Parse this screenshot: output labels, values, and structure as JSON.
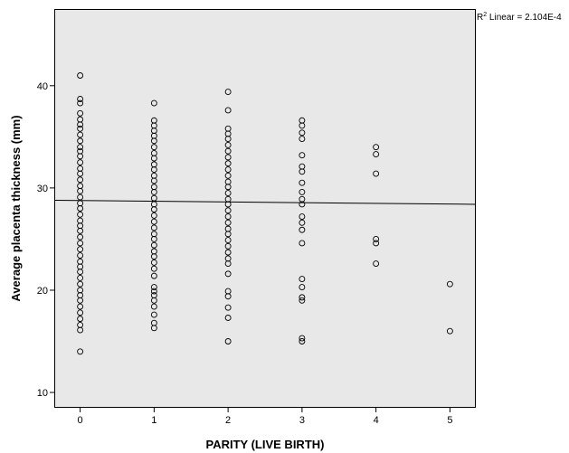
{
  "chart_data": {
    "type": "scatter",
    "xlabel": "PARITY (LIVE BIRTH)",
    "ylabel": "Average placenta thickness (mm)",
    "xlim": [
      -0.35,
      5.35
    ],
    "ylim": [
      8.5,
      47.5
    ],
    "x_ticks": [
      0,
      1,
      2,
      3,
      4,
      5
    ],
    "x_tick_labels": [
      "0",
      "1",
      "2",
      "3",
      "4",
      "5"
    ],
    "y_ticks": [
      10,
      20,
      30,
      40
    ],
    "y_tick_labels": [
      "10",
      "20",
      "30",
      "40"
    ],
    "grid": false,
    "background": "#e8e8e8",
    "marker": "open-circle",
    "fit_line": {
      "label_prefix": "R",
      "label_sup": "2",
      "label_rest": " Linear = 2.104E-4",
      "x": [
        -0.35,
        5.35
      ],
      "y": [
        28.8,
        28.4
      ]
    },
    "series": [
      {
        "points": [
          [
            0,
            41.0
          ],
          [
            0,
            38.7
          ],
          [
            0,
            38.3
          ],
          [
            0,
            37.3
          ],
          [
            0,
            36.7
          ],
          [
            0,
            36.2
          ],
          [
            0,
            35.8
          ],
          [
            0,
            35.2
          ],
          [
            0,
            34.6
          ],
          [
            0,
            34.0
          ],
          [
            0,
            33.6
          ],
          [
            0,
            33.1
          ],
          [
            0,
            32.5
          ],
          [
            0,
            31.9
          ],
          [
            0,
            31.4
          ],
          [
            0,
            30.8
          ],
          [
            0,
            30.2
          ],
          [
            0,
            29.7
          ],
          [
            0,
            29.1
          ],
          [
            0,
            28.5
          ],
          [
            0,
            28.0
          ],
          [
            0,
            27.4
          ],
          [
            0,
            26.8
          ],
          [
            0,
            26.3
          ],
          [
            0,
            25.8
          ],
          [
            0,
            25.2
          ],
          [
            0,
            24.6
          ],
          [
            0,
            24.0
          ],
          [
            0,
            23.4
          ],
          [
            0,
            22.8
          ],
          [
            0,
            22.3
          ],
          [
            0,
            21.8
          ],
          [
            0,
            21.2
          ],
          [
            0,
            20.6
          ],
          [
            0,
            20.0
          ],
          [
            0,
            19.5
          ],
          [
            0,
            19.0
          ],
          [
            0,
            18.4
          ],
          [
            0,
            17.8
          ],
          [
            0,
            17.2
          ],
          [
            0,
            16.6
          ],
          [
            0,
            16.1
          ],
          [
            0,
            14.0
          ],
          [
            1,
            38.3
          ],
          [
            1,
            36.6
          ],
          [
            1,
            36.1
          ],
          [
            1,
            35.6
          ],
          [
            1,
            35.1
          ],
          [
            1,
            34.6
          ],
          [
            1,
            34.0
          ],
          [
            1,
            33.4
          ],
          [
            1,
            32.9
          ],
          [
            1,
            32.3
          ],
          [
            1,
            31.8
          ],
          [
            1,
            31.2
          ],
          [
            1,
            30.7
          ],
          [
            1,
            30.1
          ],
          [
            1,
            29.6
          ],
          [
            1,
            29.0
          ],
          [
            1,
            28.4
          ],
          [
            1,
            27.9
          ],
          [
            1,
            27.3
          ],
          [
            1,
            26.7
          ],
          [
            1,
            26.1
          ],
          [
            1,
            25.5
          ],
          [
            1,
            25.0
          ],
          [
            1,
            24.4
          ],
          [
            1,
            23.8
          ],
          [
            1,
            23.3
          ],
          [
            1,
            22.7
          ],
          [
            1,
            22.1
          ],
          [
            1,
            21.4
          ],
          [
            1,
            20.3
          ],
          [
            1,
            19.9
          ],
          [
            1,
            19.5
          ],
          [
            1,
            19.0
          ],
          [
            1,
            18.4
          ],
          [
            1,
            17.6
          ],
          [
            1,
            16.8
          ],
          [
            1,
            16.3
          ],
          [
            2,
            39.4
          ],
          [
            2,
            37.6
          ],
          [
            2,
            35.8
          ],
          [
            2,
            35.3
          ],
          [
            2,
            34.8
          ],
          [
            2,
            34.2
          ],
          [
            2,
            33.6
          ],
          [
            2,
            33.0
          ],
          [
            2,
            32.4
          ],
          [
            2,
            31.8
          ],
          [
            2,
            31.2
          ],
          [
            2,
            30.6
          ],
          [
            2,
            30.1
          ],
          [
            2,
            29.5
          ],
          [
            2,
            28.9
          ],
          [
            2,
            28.4
          ],
          [
            2,
            27.8
          ],
          [
            2,
            27.2
          ],
          [
            2,
            26.6
          ],
          [
            2,
            26.0
          ],
          [
            2,
            25.5
          ],
          [
            2,
            24.9
          ],
          [
            2,
            24.3
          ],
          [
            2,
            23.7
          ],
          [
            2,
            23.1
          ],
          [
            2,
            22.6
          ],
          [
            2,
            21.6
          ],
          [
            2,
            19.9
          ],
          [
            2,
            19.4
          ],
          [
            2,
            18.3
          ],
          [
            2,
            17.3
          ],
          [
            2,
            15.0
          ],
          [
            3,
            36.6
          ],
          [
            3,
            36.1
          ],
          [
            3,
            35.4
          ],
          [
            3,
            34.8
          ],
          [
            3,
            33.2
          ],
          [
            3,
            32.1
          ],
          [
            3,
            31.6
          ],
          [
            3,
            30.5
          ],
          [
            3,
            29.6
          ],
          [
            3,
            28.9
          ],
          [
            3,
            28.4
          ],
          [
            3,
            27.2
          ],
          [
            3,
            26.6
          ],
          [
            3,
            25.9
          ],
          [
            3,
            24.6
          ],
          [
            3,
            21.1
          ],
          [
            3,
            20.3
          ],
          [
            3,
            19.3
          ],
          [
            3,
            19.0
          ],
          [
            3,
            15.3
          ],
          [
            3,
            15.0
          ],
          [
            4,
            34.0
          ],
          [
            4,
            33.3
          ],
          [
            4,
            31.4
          ],
          [
            4,
            25.0
          ],
          [
            4,
            24.6
          ],
          [
            4,
            22.6
          ],
          [
            5,
            20.6
          ],
          [
            5,
            16.0
          ]
        ]
      }
    ]
  }
}
